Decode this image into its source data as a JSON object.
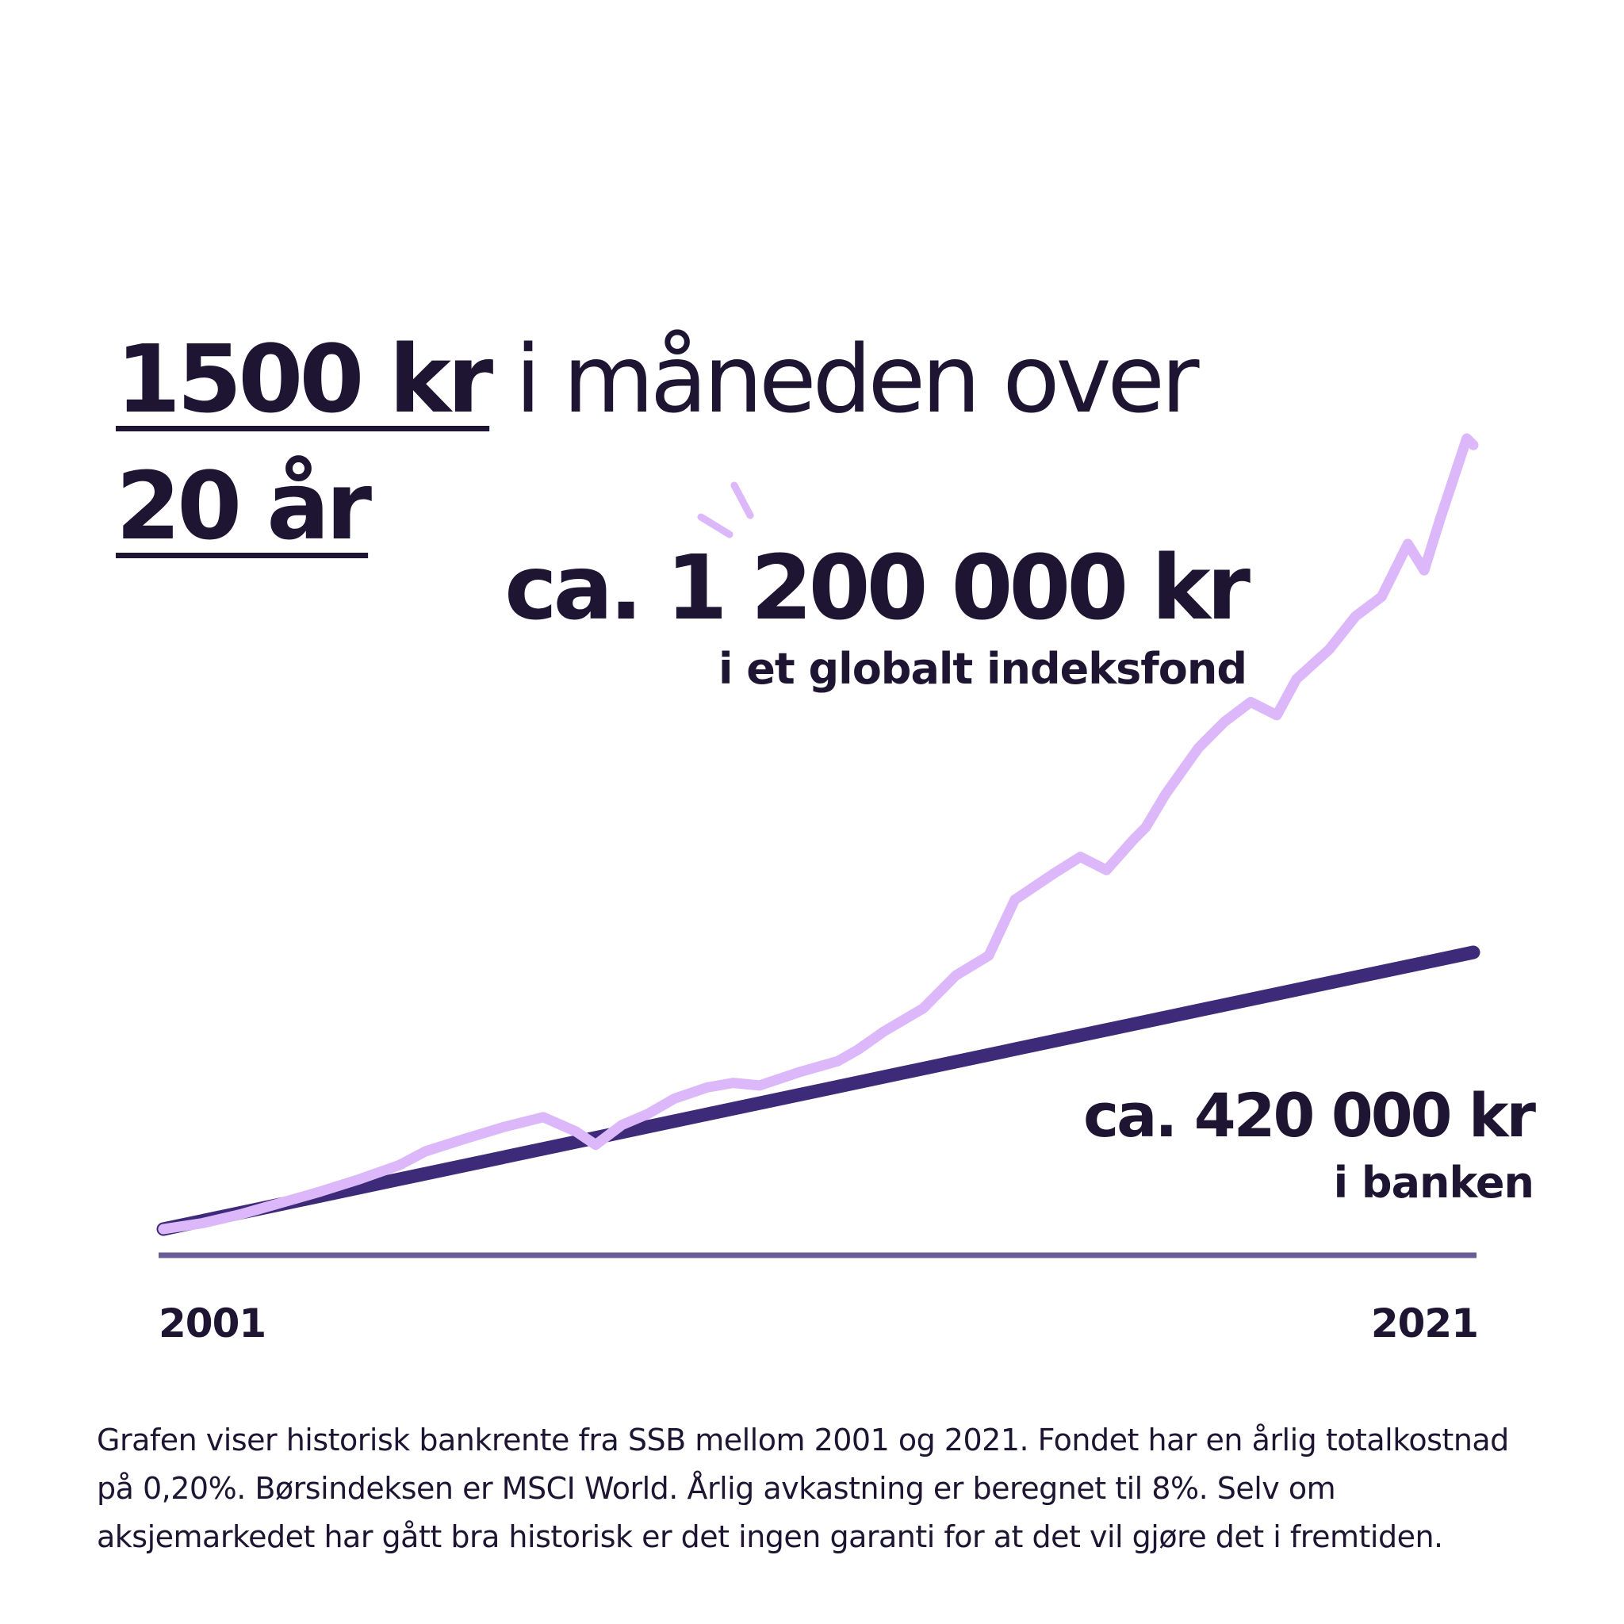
{
  "headline": {
    "amount": "1500 kr",
    "middle": " i måneden over",
    "period": "20 år"
  },
  "fund": {
    "amount": "ca. 1 200 000 kr",
    "label": "i et globalt indeksfond",
    "color": "#dcb8fb"
  },
  "bank": {
    "amount": "ca. 420 000 kr",
    "label": "i banken",
    "color": "#3d2a78"
  },
  "axis": {
    "start": "2001",
    "end": "2021",
    "color": "#6a5d96"
  },
  "footnote": "Grafen viser historisk bankrente fra SSB mellom 2001 og 2021. Fondet har en årlig totalkostnad på 0,20%. Børsindeksen er MSCI World. Årlig avkastning er beregnet til 8%. Selv om aksjemarkedet har gått bra historisk er det ingen garanti for at det vil gjøre det i fremtiden.",
  "chart_data": {
    "type": "line",
    "xlim": [
      2001,
      2021
    ],
    "series": [
      {
        "name": "i banken",
        "color": "#3d2a78",
        "x": [
          2001,
          2021
        ],
        "y": [
          0,
          420000
        ]
      },
      {
        "name": "i et globalt indeksfond",
        "color": "#dcb8fb",
        "x": [
          2001.0,
          2001.6,
          2002.2,
          2002.8,
          2003.4,
          2004.0,
          2004.6,
          2005.0,
          2005.6,
          2006.2,
          2006.8,
          2007.3,
          2007.6,
          2008.0,
          2008.4,
          2008.8,
          2009.3,
          2009.7,
          2010.1,
          2010.7,
          2011.3,
          2011.6,
          2012.0,
          2012.6,
          2013.1,
          2013.6,
          2014.0,
          2014.6,
          2015.0,
          2015.4,
          2015.8,
          2016.0,
          2016.3,
          2016.8,
          2017.2,
          2017.6,
          2018.0,
          2018.3,
          2018.8,
          2019.2,
          2019.6,
          2020.0,
          2020.25,
          2020.5,
          2020.9,
          2021.0
        ],
        "y": [
          0,
          9000,
          23000,
          40000,
          57000,
          76000,
          97000,
          118000,
          137000,
          155000,
          170000,
          148000,
          128000,
          158000,
          175000,
          198000,
          215000,
          222000,
          218000,
          238000,
          255000,
          272000,
          300000,
          335000,
          385000,
          415000,
          500000,
          540000,
          565000,
          545000,
          590000,
          610000,
          660000,
          730000,
          770000,
          800000,
          780000,
          835000,
          880000,
          930000,
          960000,
          1040000,
          1000000,
          1080000,
          1200000,
          1190000
        ]
      }
    ]
  }
}
